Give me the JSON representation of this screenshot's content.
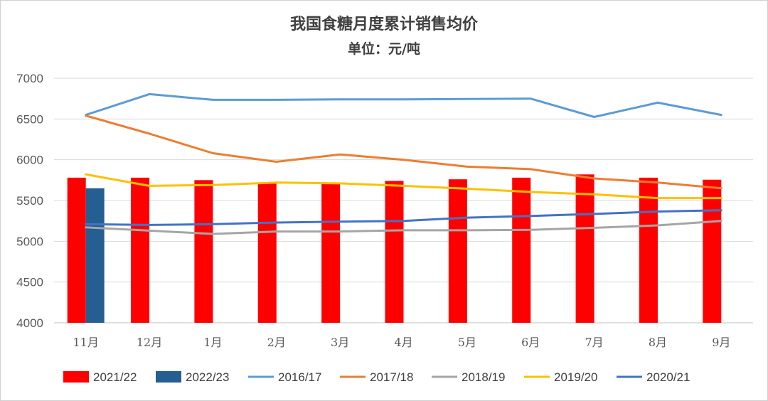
{
  "chart_data": {
    "type": "bar",
    "title": "我国食糖月度累计销售均价",
    "subtitle": "单位：元/吨",
    "categories": [
      "11月",
      "12月",
      "1月",
      "2月",
      "3月",
      "4月",
      "5月",
      "6月",
      "7月",
      "8月",
      "9月"
    ],
    "ylim": [
      4000,
      7000
    ],
    "yticks": [
      4000,
      4500,
      5000,
      5500,
      6000,
      6500,
      7000
    ],
    "grid": true,
    "legend_position": "bottom",
    "bar_series": [
      {
        "name": "2021/22",
        "color": "#ff0000",
        "values": [
          5780,
          5780,
          5750,
          5720,
          5710,
          5740,
          5760,
          5780,
          5820,
          5780,
          5755
        ]
      },
      {
        "name": "2022/23",
        "color": "#255e91",
        "values": [
          5650,
          null,
          null,
          null,
          null,
          null,
          null,
          null,
          null,
          null,
          null
        ]
      }
    ],
    "line_series": [
      {
        "name": "2016/17",
        "color": "#5b9bd5",
        "values": [
          6550,
          6805,
          6735,
          6735,
          6740,
          6740,
          6745,
          6750,
          6525,
          6700,
          6550
        ]
      },
      {
        "name": "2017/18",
        "color": "#ed7d31",
        "values": [
          6540,
          6320,
          6080,
          5975,
          6065,
          6000,
          5915,
          5885,
          5770,
          5720,
          5650
        ]
      },
      {
        "name": "2018/19",
        "color": "#a5a5a5",
        "values": [
          5170,
          5130,
          5090,
          5120,
          5120,
          5135,
          5135,
          5140,
          5165,
          5195,
          5250
        ]
      },
      {
        "name": "2019/20",
        "color": "#ffc000",
        "values": [
          5820,
          5680,
          5690,
          5720,
          5710,
          5680,
          5645,
          5605,
          5575,
          5530,
          5530
        ]
      },
      {
        "name": "2020/21",
        "color": "#4472c4",
        "values": [
          5210,
          5200,
          5210,
          5230,
          5240,
          5250,
          5290,
          5310,
          5335,
          5365,
          5380
        ]
      }
    ],
    "legend_order": [
      "2021/22",
      "2022/23",
      "2016/17",
      "2017/18",
      "2018/19",
      "2019/20",
      "2020/21"
    ]
  }
}
